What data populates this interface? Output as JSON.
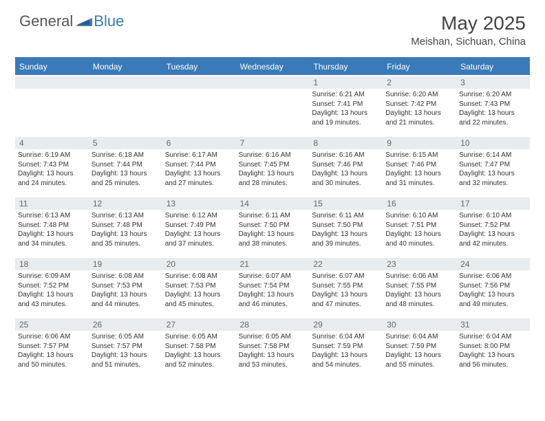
{
  "logo": {
    "text1": "General",
    "text2": "Blue"
  },
  "title": "May 2025",
  "location": "Meishan, Sichuan, China",
  "colors": {
    "header_bar": "#3a7ab8",
    "daynum_bg": "#e8ecef",
    "text": "#333333",
    "logo_blue": "#3a7ab8"
  },
  "day_names": [
    "Sunday",
    "Monday",
    "Tuesday",
    "Wednesday",
    "Thursday",
    "Friday",
    "Saturday"
  ],
  "weeks": [
    [
      {
        "day": "",
        "lines": []
      },
      {
        "day": "",
        "lines": []
      },
      {
        "day": "",
        "lines": []
      },
      {
        "day": "",
        "lines": []
      },
      {
        "day": "1",
        "lines": [
          "Sunrise: 6:21 AM",
          "Sunset: 7:41 PM",
          "Daylight: 13 hours",
          "and 19 minutes."
        ]
      },
      {
        "day": "2",
        "lines": [
          "Sunrise: 6:20 AM",
          "Sunset: 7:42 PM",
          "Daylight: 13 hours",
          "and 21 minutes."
        ]
      },
      {
        "day": "3",
        "lines": [
          "Sunrise: 6:20 AM",
          "Sunset: 7:43 PM",
          "Daylight: 13 hours",
          "and 22 minutes."
        ]
      }
    ],
    [
      {
        "day": "4",
        "lines": [
          "Sunrise: 6:19 AM",
          "Sunset: 7:43 PM",
          "Daylight: 13 hours",
          "and 24 minutes."
        ]
      },
      {
        "day": "5",
        "lines": [
          "Sunrise: 6:18 AM",
          "Sunset: 7:44 PM",
          "Daylight: 13 hours",
          "and 25 minutes."
        ]
      },
      {
        "day": "6",
        "lines": [
          "Sunrise: 6:17 AM",
          "Sunset: 7:44 PM",
          "Daylight: 13 hours",
          "and 27 minutes."
        ]
      },
      {
        "day": "7",
        "lines": [
          "Sunrise: 6:16 AM",
          "Sunset: 7:45 PM",
          "Daylight: 13 hours",
          "and 28 minutes."
        ]
      },
      {
        "day": "8",
        "lines": [
          "Sunrise: 6:16 AM",
          "Sunset: 7:46 PM",
          "Daylight: 13 hours",
          "and 30 minutes."
        ]
      },
      {
        "day": "9",
        "lines": [
          "Sunrise: 6:15 AM",
          "Sunset: 7:46 PM",
          "Daylight: 13 hours",
          "and 31 minutes."
        ]
      },
      {
        "day": "10",
        "lines": [
          "Sunrise: 6:14 AM",
          "Sunset: 7:47 PM",
          "Daylight: 13 hours",
          "and 32 minutes."
        ]
      }
    ],
    [
      {
        "day": "11",
        "lines": [
          "Sunrise: 6:13 AM",
          "Sunset: 7:48 PM",
          "Daylight: 13 hours",
          "and 34 minutes."
        ]
      },
      {
        "day": "12",
        "lines": [
          "Sunrise: 6:13 AM",
          "Sunset: 7:48 PM",
          "Daylight: 13 hours",
          "and 35 minutes."
        ]
      },
      {
        "day": "13",
        "lines": [
          "Sunrise: 6:12 AM",
          "Sunset: 7:49 PM",
          "Daylight: 13 hours",
          "and 37 minutes."
        ]
      },
      {
        "day": "14",
        "lines": [
          "Sunrise: 6:11 AM",
          "Sunset: 7:50 PM",
          "Daylight: 13 hours",
          "and 38 minutes."
        ]
      },
      {
        "day": "15",
        "lines": [
          "Sunrise: 6:11 AM",
          "Sunset: 7:50 PM",
          "Daylight: 13 hours",
          "and 39 minutes."
        ]
      },
      {
        "day": "16",
        "lines": [
          "Sunrise: 6:10 AM",
          "Sunset: 7:51 PM",
          "Daylight: 13 hours",
          "and 40 minutes."
        ]
      },
      {
        "day": "17",
        "lines": [
          "Sunrise: 6:10 AM",
          "Sunset: 7:52 PM",
          "Daylight: 13 hours",
          "and 42 minutes."
        ]
      }
    ],
    [
      {
        "day": "18",
        "lines": [
          "Sunrise: 6:09 AM",
          "Sunset: 7:52 PM",
          "Daylight: 13 hours",
          "and 43 minutes."
        ]
      },
      {
        "day": "19",
        "lines": [
          "Sunrise: 6:08 AM",
          "Sunset: 7:53 PM",
          "Daylight: 13 hours",
          "and 44 minutes."
        ]
      },
      {
        "day": "20",
        "lines": [
          "Sunrise: 6:08 AM",
          "Sunset: 7:53 PM",
          "Daylight: 13 hours",
          "and 45 minutes."
        ]
      },
      {
        "day": "21",
        "lines": [
          "Sunrise: 6:07 AM",
          "Sunset: 7:54 PM",
          "Daylight: 13 hours",
          "and 46 minutes."
        ]
      },
      {
        "day": "22",
        "lines": [
          "Sunrise: 6:07 AM",
          "Sunset: 7:55 PM",
          "Daylight: 13 hours",
          "and 47 minutes."
        ]
      },
      {
        "day": "23",
        "lines": [
          "Sunrise: 6:06 AM",
          "Sunset: 7:55 PM",
          "Daylight: 13 hours",
          "and 48 minutes."
        ]
      },
      {
        "day": "24",
        "lines": [
          "Sunrise: 6:06 AM",
          "Sunset: 7:56 PM",
          "Daylight: 13 hours",
          "and 49 minutes."
        ]
      }
    ],
    [
      {
        "day": "25",
        "lines": [
          "Sunrise: 6:06 AM",
          "Sunset: 7:57 PM",
          "Daylight: 13 hours",
          "and 50 minutes."
        ]
      },
      {
        "day": "26",
        "lines": [
          "Sunrise: 6:05 AM",
          "Sunset: 7:57 PM",
          "Daylight: 13 hours",
          "and 51 minutes."
        ]
      },
      {
        "day": "27",
        "lines": [
          "Sunrise: 6:05 AM",
          "Sunset: 7:58 PM",
          "Daylight: 13 hours",
          "and 52 minutes."
        ]
      },
      {
        "day": "28",
        "lines": [
          "Sunrise: 6:05 AM",
          "Sunset: 7:58 PM",
          "Daylight: 13 hours",
          "and 53 minutes."
        ]
      },
      {
        "day": "29",
        "lines": [
          "Sunrise: 6:04 AM",
          "Sunset: 7:59 PM",
          "Daylight: 13 hours",
          "and 54 minutes."
        ]
      },
      {
        "day": "30",
        "lines": [
          "Sunrise: 6:04 AM",
          "Sunset: 7:59 PM",
          "Daylight: 13 hours",
          "and 55 minutes."
        ]
      },
      {
        "day": "31",
        "lines": [
          "Sunrise: 6:04 AM",
          "Sunset: 8:00 PM",
          "Daylight: 13 hours",
          "and 56 minutes."
        ]
      }
    ]
  ]
}
